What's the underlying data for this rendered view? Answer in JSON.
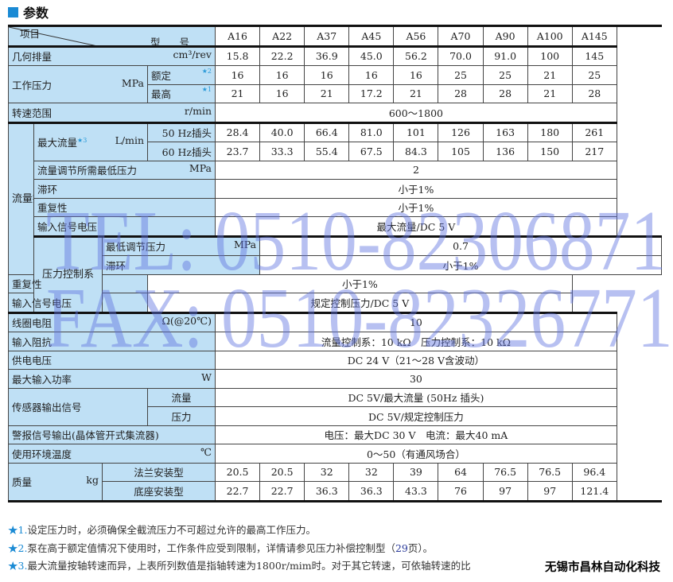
{
  "title": "参数",
  "header": {
    "model_label": "型 号",
    "item_label": "项目",
    "models": [
      "A16",
      "A22",
      "A37",
      "A45",
      "A56",
      "A70",
      "A90",
      "A100",
      "A145"
    ]
  },
  "rows": {
    "displacement": {
      "label": "几何排量",
      "unit": "cm³/rev",
      "values": [
        "15.8",
        "22.2",
        "36.9",
        "45.0",
        "56.2",
        "70.0",
        "91.0",
        "100",
        "145"
      ]
    },
    "pressure": {
      "label": "工作压力",
      "unit": "MPa",
      "rated_label": "额定",
      "rated_star": "★2",
      "rated": [
        "16",
        "16",
        "16",
        "16",
        "16",
        "25",
        "25",
        "21",
        "25"
      ],
      "max_label": "最高",
      "max_star": "★1",
      "max": [
        "21",
        "16",
        "21",
        "17.2",
        "21",
        "28",
        "28",
        "21",
        "28"
      ]
    },
    "speed": {
      "label": "转速范围",
      "unit": "r/min",
      "value": "600～1800"
    },
    "flow_group": {
      "label": "流量控制系",
      "max_flow": {
        "label": "最大流量",
        "star": "★3",
        "unit": "L/min",
        "hz50_label": "50 Hz插头",
        "hz50": [
          "28.4",
          "40.0",
          "66.4",
          "81.0",
          "101",
          "126",
          "163",
          "180",
          "261"
        ],
        "hz60_label": "60 Hz插头",
        "hz60": [
          "23.7",
          "33.3",
          "55.4",
          "67.5",
          "84.3",
          "105",
          "136",
          "150",
          "217"
        ]
      },
      "min_pressure": {
        "label": "流量调节所需最低压力",
        "unit": "MPa",
        "value": "2"
      },
      "hysteresis": {
        "label": "滞环",
        "value": "小于1%"
      },
      "repeatability": {
        "label": "重复性",
        "value": "小于1%"
      },
      "input_voltage": {
        "label": "输入信号电压",
        "value": "最大流量/DC 5 V"
      }
    },
    "pressure_group": {
      "label": "压力控制系",
      "min_pressure": {
        "label": "最低调节压力",
        "unit": "MPa",
        "value": "0.7"
      },
      "hysteresis": {
        "label": "滞环",
        "value": "小于1%"
      },
      "repeatability": {
        "label": "重复性",
        "value": "小于1%"
      },
      "input_voltage": {
        "label": "输入信号电压",
        "value": "规定控制压力/DC 5 V"
      }
    },
    "coil": {
      "label": "线圈电阻",
      "unit": "Ω(@20℃)",
      "value": "10"
    },
    "impedance": {
      "label": "输入阻抗",
      "value": "流量控制系：10 kΩ　压力控制系：10 kΩ"
    },
    "supply": {
      "label": "供电电压",
      "value": "DC 24 V（21～28 V含波动）"
    },
    "power": {
      "label": "最大输入功率",
      "unit": "W",
      "value": "30"
    },
    "sensor": {
      "label": "传感器输出信号",
      "flow_label": "流量",
      "flow": "DC 5V/最大流量 (50Hz 插头)",
      "pressure_label": "压力",
      "pressure": "DC 5V/规定控制压力"
    },
    "alarm": {
      "label": "警报信号输出(晶体管开式集流器)",
      "value": "电压：最大DC 30 V　电流：最大40 mA"
    },
    "temperature": {
      "label": "使用环境温度",
      "unit": "℃",
      "value": "0～50（有通风场合）"
    },
    "mass": {
      "label": "质量",
      "unit": "kg",
      "flange_label": "法兰安装型",
      "flange": [
        "20.5",
        "20.5",
        "32",
        "32",
        "39",
        "64",
        "76.5",
        "76.5",
        "96.4"
      ],
      "base_label": "底座安装型",
      "base": [
        "22.7",
        "22.7",
        "36.3",
        "36.3",
        "43.3",
        "76",
        "97",
        "97",
        "121.4"
      ]
    }
  },
  "notes": [
    {
      "star": "★",
      "num": "1.",
      "text": "设定压力时，必须确保全截流压力不可超过允许的最高工作压力。"
    },
    {
      "star": "★",
      "num": "2.",
      "text": "泵在高于额定值情况下使用时，工作条件应受到限制，详情请参见压力补偿控制型（",
      "page": "29",
      "tail": "页）。"
    },
    {
      "star": "★",
      "num": "3.",
      "text": "最大流量按轴转速而异，上表所列数值是指轴转速为1800r/mim时。对于其它转速，可依轴转速的比"
    }
  ],
  "watermark": {
    "tel": "TEL: 0510-82306871",
    "fax": "FAX: 0510-82326771"
  },
  "company": "无锡市昌林自动化科技",
  "colors": {
    "accent": "#1a8ad4",
    "label_bg": "#bfe0f5",
    "watermark": "#5f73e1"
  }
}
